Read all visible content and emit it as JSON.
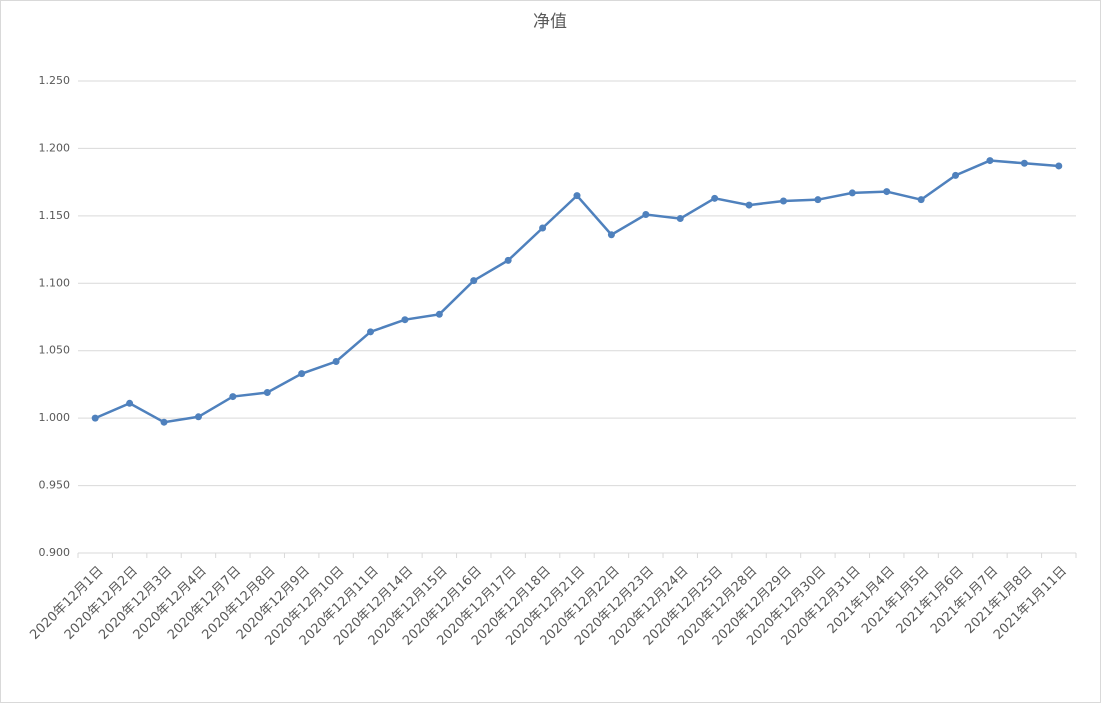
{
  "chart_data": {
    "type": "line",
    "title": "净值",
    "categories": [
      "2020年12月1日",
      "2020年12月2日",
      "2020年12月3日",
      "2020年12月4日",
      "2020年12月7日",
      "2020年12月8日",
      "2020年12月9日",
      "2020年12月10日",
      "2020年12月11日",
      "2020年12月14日",
      "2020年12月15日",
      "2020年12月16日",
      "2020年12月17日",
      "2020年12月18日",
      "2020年12月21日",
      "2020年12月22日",
      "2020年12月23日",
      "2020年12月24日",
      "2020年12月25日",
      "2020年12月28日",
      "2020年12月29日",
      "2020年12月30日",
      "2020年12月31日",
      "2021年1月4日",
      "2021年1月5日",
      "2021年1月6日",
      "2021年1月7日",
      "2021年1月8日",
      "2021年1月11日"
    ],
    "values": [
      1.0,
      1.011,
      0.997,
      1.001,
      1.016,
      1.019,
      1.033,
      1.042,
      1.064,
      1.073,
      1.077,
      1.102,
      1.117,
      1.141,
      1.165,
      1.136,
      1.151,
      1.148,
      1.163,
      1.158,
      1.161,
      1.162,
      1.167,
      1.168,
      1.162,
      1.18,
      1.191,
      1.189,
      1.187
    ],
    "color": "#4f81bd",
    "ylim": [
      0.9,
      1.25
    ],
    "yticks": [
      {
        "value": 0.9,
        "label": "0.900"
      },
      {
        "value": 0.95,
        "label": "0.950"
      },
      {
        "value": 1.0,
        "label": "1.000"
      },
      {
        "value": 1.05,
        "label": "1.050"
      },
      {
        "value": 1.1,
        "label": "1.100"
      },
      {
        "value": 1.15,
        "label": "1.150"
      },
      {
        "value": 1.2,
        "label": "1.200"
      },
      {
        "value": 1.25,
        "label": "1.250"
      }
    ],
    "grid": true
  }
}
